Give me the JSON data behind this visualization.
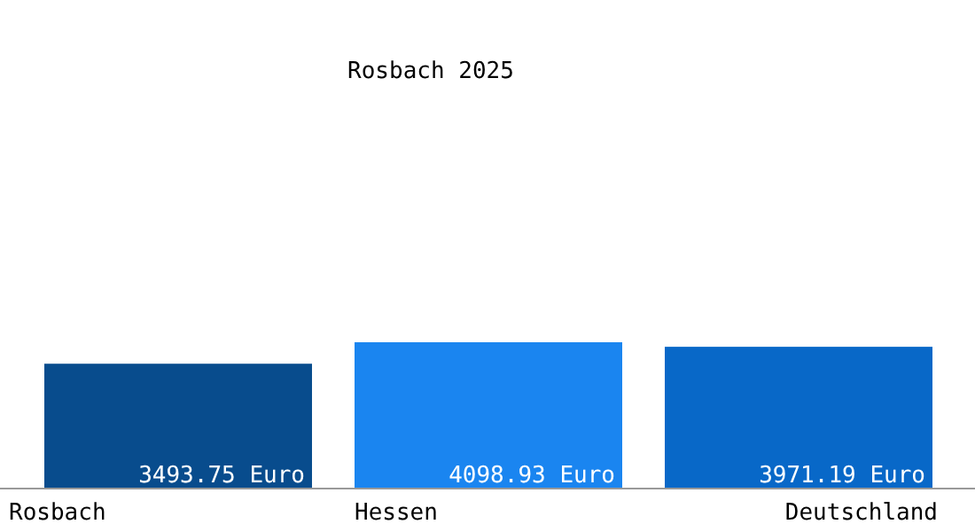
{
  "chart_data": {
    "type": "bar",
    "title": "Rosbach 2025",
    "categories": [
      "Rosbach",
      "Hessen",
      "Deutschland"
    ],
    "values": [
      3493.75,
      4098.93,
      3971.19
    ],
    "colors": [
      "#084c8d",
      "#1a85f0",
      "#0868c8"
    ],
    "value_labels": [
      "3493.75 Euro",
      "4098.93 Euro",
      "3971.19 Euro"
    ]
  }
}
